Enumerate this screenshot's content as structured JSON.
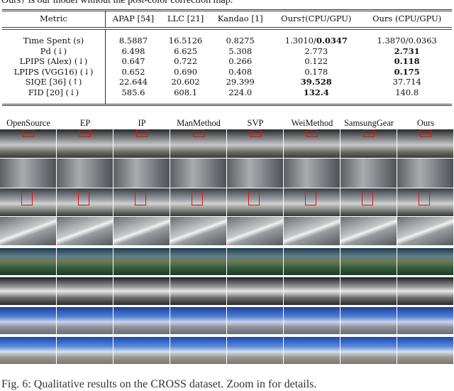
{
  "top_text": "Ours† is our model without the post-color correction map.",
  "table": {
    "headers": [
      "Metric",
      "APAP [54]",
      "LLC [21]",
      "Kandao [1]",
      "Ours†(CPU/GPU)",
      "Ours (CPU/GPU)"
    ],
    "rows": [
      {
        "metric": "Time Spent (s)",
        "values": [
          "8.5887",
          "16.5126",
          "0.8275",
          "1.3010/0.0347",
          "1.3870/0.0363"
        ],
        "bold": []
      },
      {
        "metric": "Pd (↓)",
        "values": [
          "6.498",
          "6.625",
          "5.308",
          "2.773",
          "2.731"
        ],
        "bold": [
          4
        ]
      },
      {
        "metric": "LPIPS (Alex) (↓)",
        "values": [
          "0.647",
          "0.722",
          "0.266",
          "0.122",
          "0.118"
        ],
        "bold": [
          4
        ]
      },
      {
        "metric": "LPIPS (VGG16) (↓)",
        "values": [
          "0.652",
          "0.690",
          "0.408",
          "0.178",
          "0.175"
        ],
        "bold": [
          4
        ]
      },
      {
        "metric": "SIQE [36] (↑)",
        "values": [
          "22.644",
          "20.602",
          "29.399",
          "39.528",
          "37.714"
        ],
        "bold": [
          3
        ]
      },
      {
        "metric": "FID [20] (↓)",
        "values": [
          "585.6",
          "608.1",
          "224.0",
          "132.4",
          "140.8"
        ],
        "bold": [
          3
        ]
      }
    ]
  },
  "figure": {
    "columns": [
      "OpenSource",
      "EP",
      "IP",
      "ManMethod",
      "SVP",
      "WeiMethod",
      "SamsungGear",
      "Ours"
    ],
    "highlight_color": "#e21111",
    "caption": "Fig. 6: Qualitative results on the CROSS dataset. Zoom in for details."
  }
}
